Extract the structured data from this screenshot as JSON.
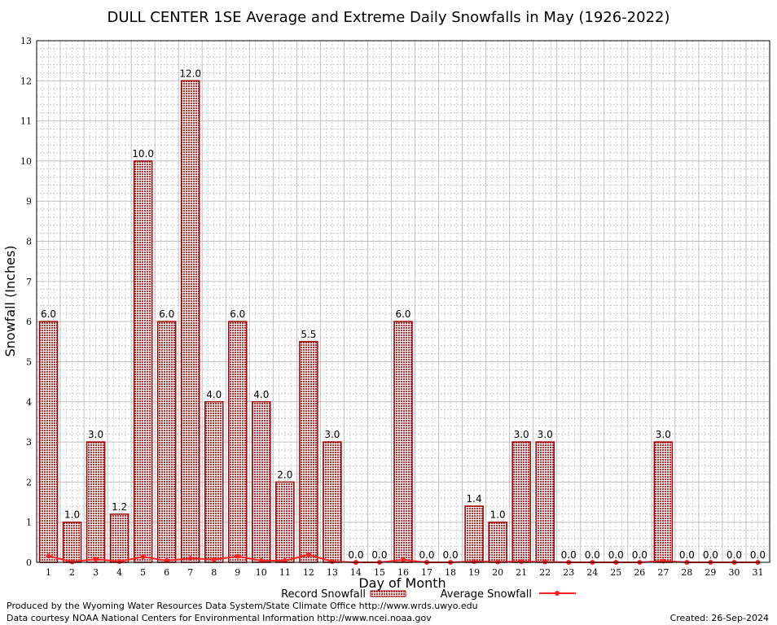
{
  "chart_data": {
    "type": "bar",
    "title": "DULL CENTER 1SE Average and Extreme Daily Snowfalls in May (1926-2022)",
    "xlabel": "Day of Month",
    "ylabel": "Snowfall (Inches)",
    "ylim": [
      0,
      13
    ],
    "yticks": [
      "0",
      "1",
      "2",
      "3",
      "4",
      "5",
      "6",
      "7",
      "8",
      "9",
      "10",
      "11",
      "12",
      "13"
    ],
    "categories": [
      "1",
      "2",
      "3",
      "4",
      "5",
      "6",
      "7",
      "8",
      "9",
      "10",
      "11",
      "12",
      "13",
      "14",
      "15",
      "16",
      "17",
      "18",
      "19",
      "20",
      "21",
      "22",
      "23",
      "24",
      "25",
      "26",
      "27",
      "28",
      "29",
      "30",
      "31"
    ],
    "grid": true,
    "legend_placement": "bottom",
    "series": [
      {
        "name": "Record Snowfall",
        "type": "bar",
        "color": "#b00000",
        "values": [
          6.0,
          1.0,
          3.0,
          1.2,
          10.0,
          6.0,
          12.0,
          4.0,
          6.0,
          4.0,
          2.0,
          5.5,
          3.0,
          0.0,
          0.0,
          6.0,
          0.0,
          0.0,
          1.4,
          1.0,
          3.0,
          3.0,
          0.0,
          0.0,
          0.0,
          0.0,
          3.0,
          0.0,
          0.0,
          0.0,
          0.0
        ],
        "labels": [
          "6.0",
          "1.0",
          "3.0",
          "1.2",
          "10.0",
          "6.0",
          "12.0",
          "4.0",
          "6.0",
          "4.0",
          "2.0",
          "5.5",
          "3.0",
          "0.0",
          "0.0",
          "6.0",
          "0.0",
          "0.0",
          "1.4",
          "1.0",
          "3.0",
          "3.0",
          "0.0",
          "0.0",
          "0.0",
          "0.0",
          "3.0",
          "0.0",
          "0.0",
          "0.0",
          "0.0"
        ]
      },
      {
        "name": "Average Snowfall",
        "type": "line",
        "color": "#ff2020",
        "values": [
          0.16,
          0.01,
          0.08,
          0.02,
          0.14,
          0.04,
          0.1,
          0.07,
          0.15,
          0.04,
          0.04,
          0.19,
          0.02,
          0.0,
          0.0,
          0.06,
          0.0,
          0.0,
          0.02,
          0.01,
          0.02,
          0.01,
          0.0,
          0.0,
          0.0,
          0.0,
          0.03,
          0.0,
          0.0,
          0.0,
          0.0
        ]
      }
    ]
  },
  "footer": {
    "produced": "Produced by the Wyoming Water Resources Data System/State Climate Office http://www.wrds.uwyo.edu",
    "courtesy": "Data courtesy NOAA National Centers for Environmental Information http://www.ncei.noaa.gov",
    "created": "Created: 26-Sep-2024"
  }
}
